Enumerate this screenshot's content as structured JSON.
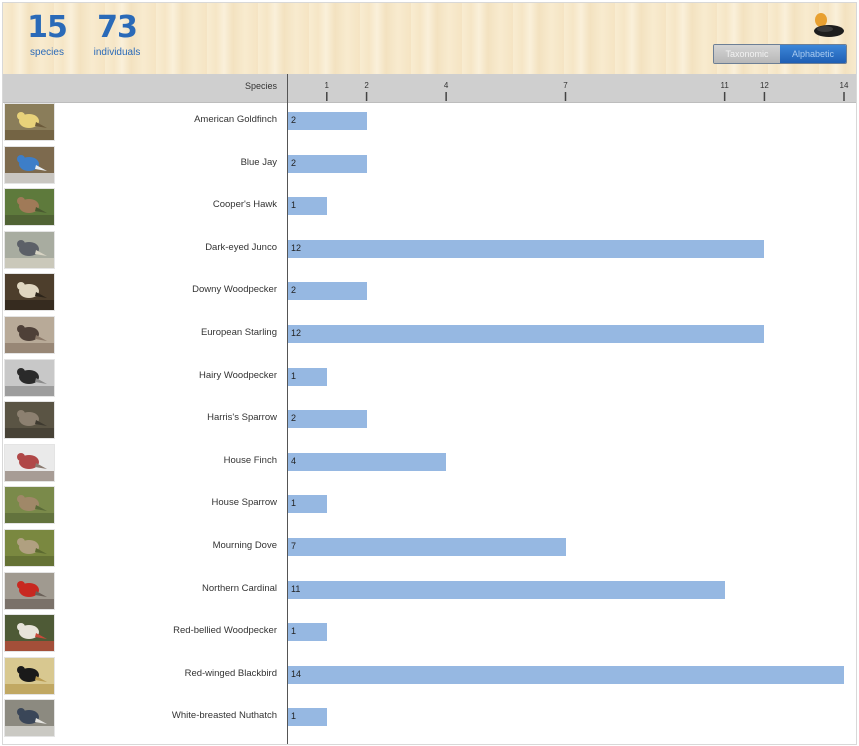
{
  "summary": {
    "species_count": "15",
    "species_label": "species",
    "individuals_count": "73",
    "individuals_label": "individuals"
  },
  "toggle": {
    "options": [
      "Taxonomic",
      "Alphabetic"
    ],
    "selected": "Alphabetic"
  },
  "logo_icon": "eggs-nest-icon",
  "colors": {
    "bar": "#96b8e2",
    "accent": "#2a6ab8"
  },
  "chart_data": {
    "type": "bar",
    "orientation": "horizontal",
    "ylabel": "Species",
    "xlim": [
      0,
      14
    ],
    "xticks": [
      1,
      2,
      4,
      7,
      11,
      12,
      14
    ],
    "categories": [
      "American Goldfinch",
      "Blue Jay",
      "Cooper's Hawk",
      "Dark-eyed Junco",
      "Downy Woodpecker",
      "European Starling",
      "Hairy Woodpecker",
      "Harris's Sparrow",
      "House Finch",
      "House Sparrow",
      "Mourning Dove",
      "Northern Cardinal",
      "Red-bellied Woodpecker",
      "Red-winged Blackbird",
      "White-breasted Nuthatch"
    ],
    "values": [
      2,
      2,
      1,
      12,
      2,
      12,
      1,
      2,
      4,
      1,
      7,
      11,
      1,
      14,
      1
    ],
    "data_labels": true,
    "thumbnails": [
      {
        "icon": "goldfinch-photo",
        "colors": [
          "#8a7d5a",
          "#e8d27a",
          "#6b5a3a"
        ]
      },
      {
        "icon": "blue-jay-photo",
        "colors": [
          "#7d6a4e",
          "#3d7ec8",
          "#e9eef2"
        ]
      },
      {
        "icon": "coopers-hawk-photo",
        "colors": [
          "#5e7a3c",
          "#a07a58",
          "#4a5a30"
        ]
      },
      {
        "icon": "junco-photo",
        "colors": [
          "#a8aca0",
          "#5c6068",
          "#d8d4c4"
        ]
      },
      {
        "icon": "downy-woodpecker-photo",
        "colors": [
          "#4d3e2c",
          "#e0d6c0",
          "#2c241a"
        ]
      },
      {
        "icon": "starling-photo",
        "colors": [
          "#b8aa98",
          "#4e4038",
          "#8a7868"
        ]
      },
      {
        "icon": "hairy-woodpecker-photo",
        "colors": [
          "#c8c8c8",
          "#2a2a2a",
          "#8a8a8a"
        ]
      },
      {
        "icon": "harris-sparrow-photo",
        "colors": [
          "#5a5444",
          "#8c8070",
          "#3e3a30"
        ]
      },
      {
        "icon": "house-finch-photo",
        "colors": [
          "#eaeaea",
          "#b04848",
          "#8a7a70"
        ]
      },
      {
        "icon": "house-sparrow-photo",
        "colors": [
          "#7a8a4a",
          "#a08868",
          "#5a6a38"
        ]
      },
      {
        "icon": "mourning-dove-photo",
        "colors": [
          "#7a8840",
          "#b0a080",
          "#5c6a30"
        ]
      },
      {
        "icon": "cardinal-photo",
        "colors": [
          "#a09a90",
          "#c82820",
          "#6a6058"
        ]
      },
      {
        "icon": "red-bellied-woodpecker-photo",
        "colors": [
          "#4e5a36",
          "#e8e4da",
          "#c84a3a"
        ]
      },
      {
        "icon": "red-winged-blackbird-photo",
        "colors": [
          "#d8c890",
          "#1a1a1a",
          "#b89a50"
        ]
      },
      {
        "icon": "nuthatch-photo",
        "colors": [
          "#8c8a80",
          "#3a4658",
          "#e4e4e0"
        ]
      }
    ]
  }
}
